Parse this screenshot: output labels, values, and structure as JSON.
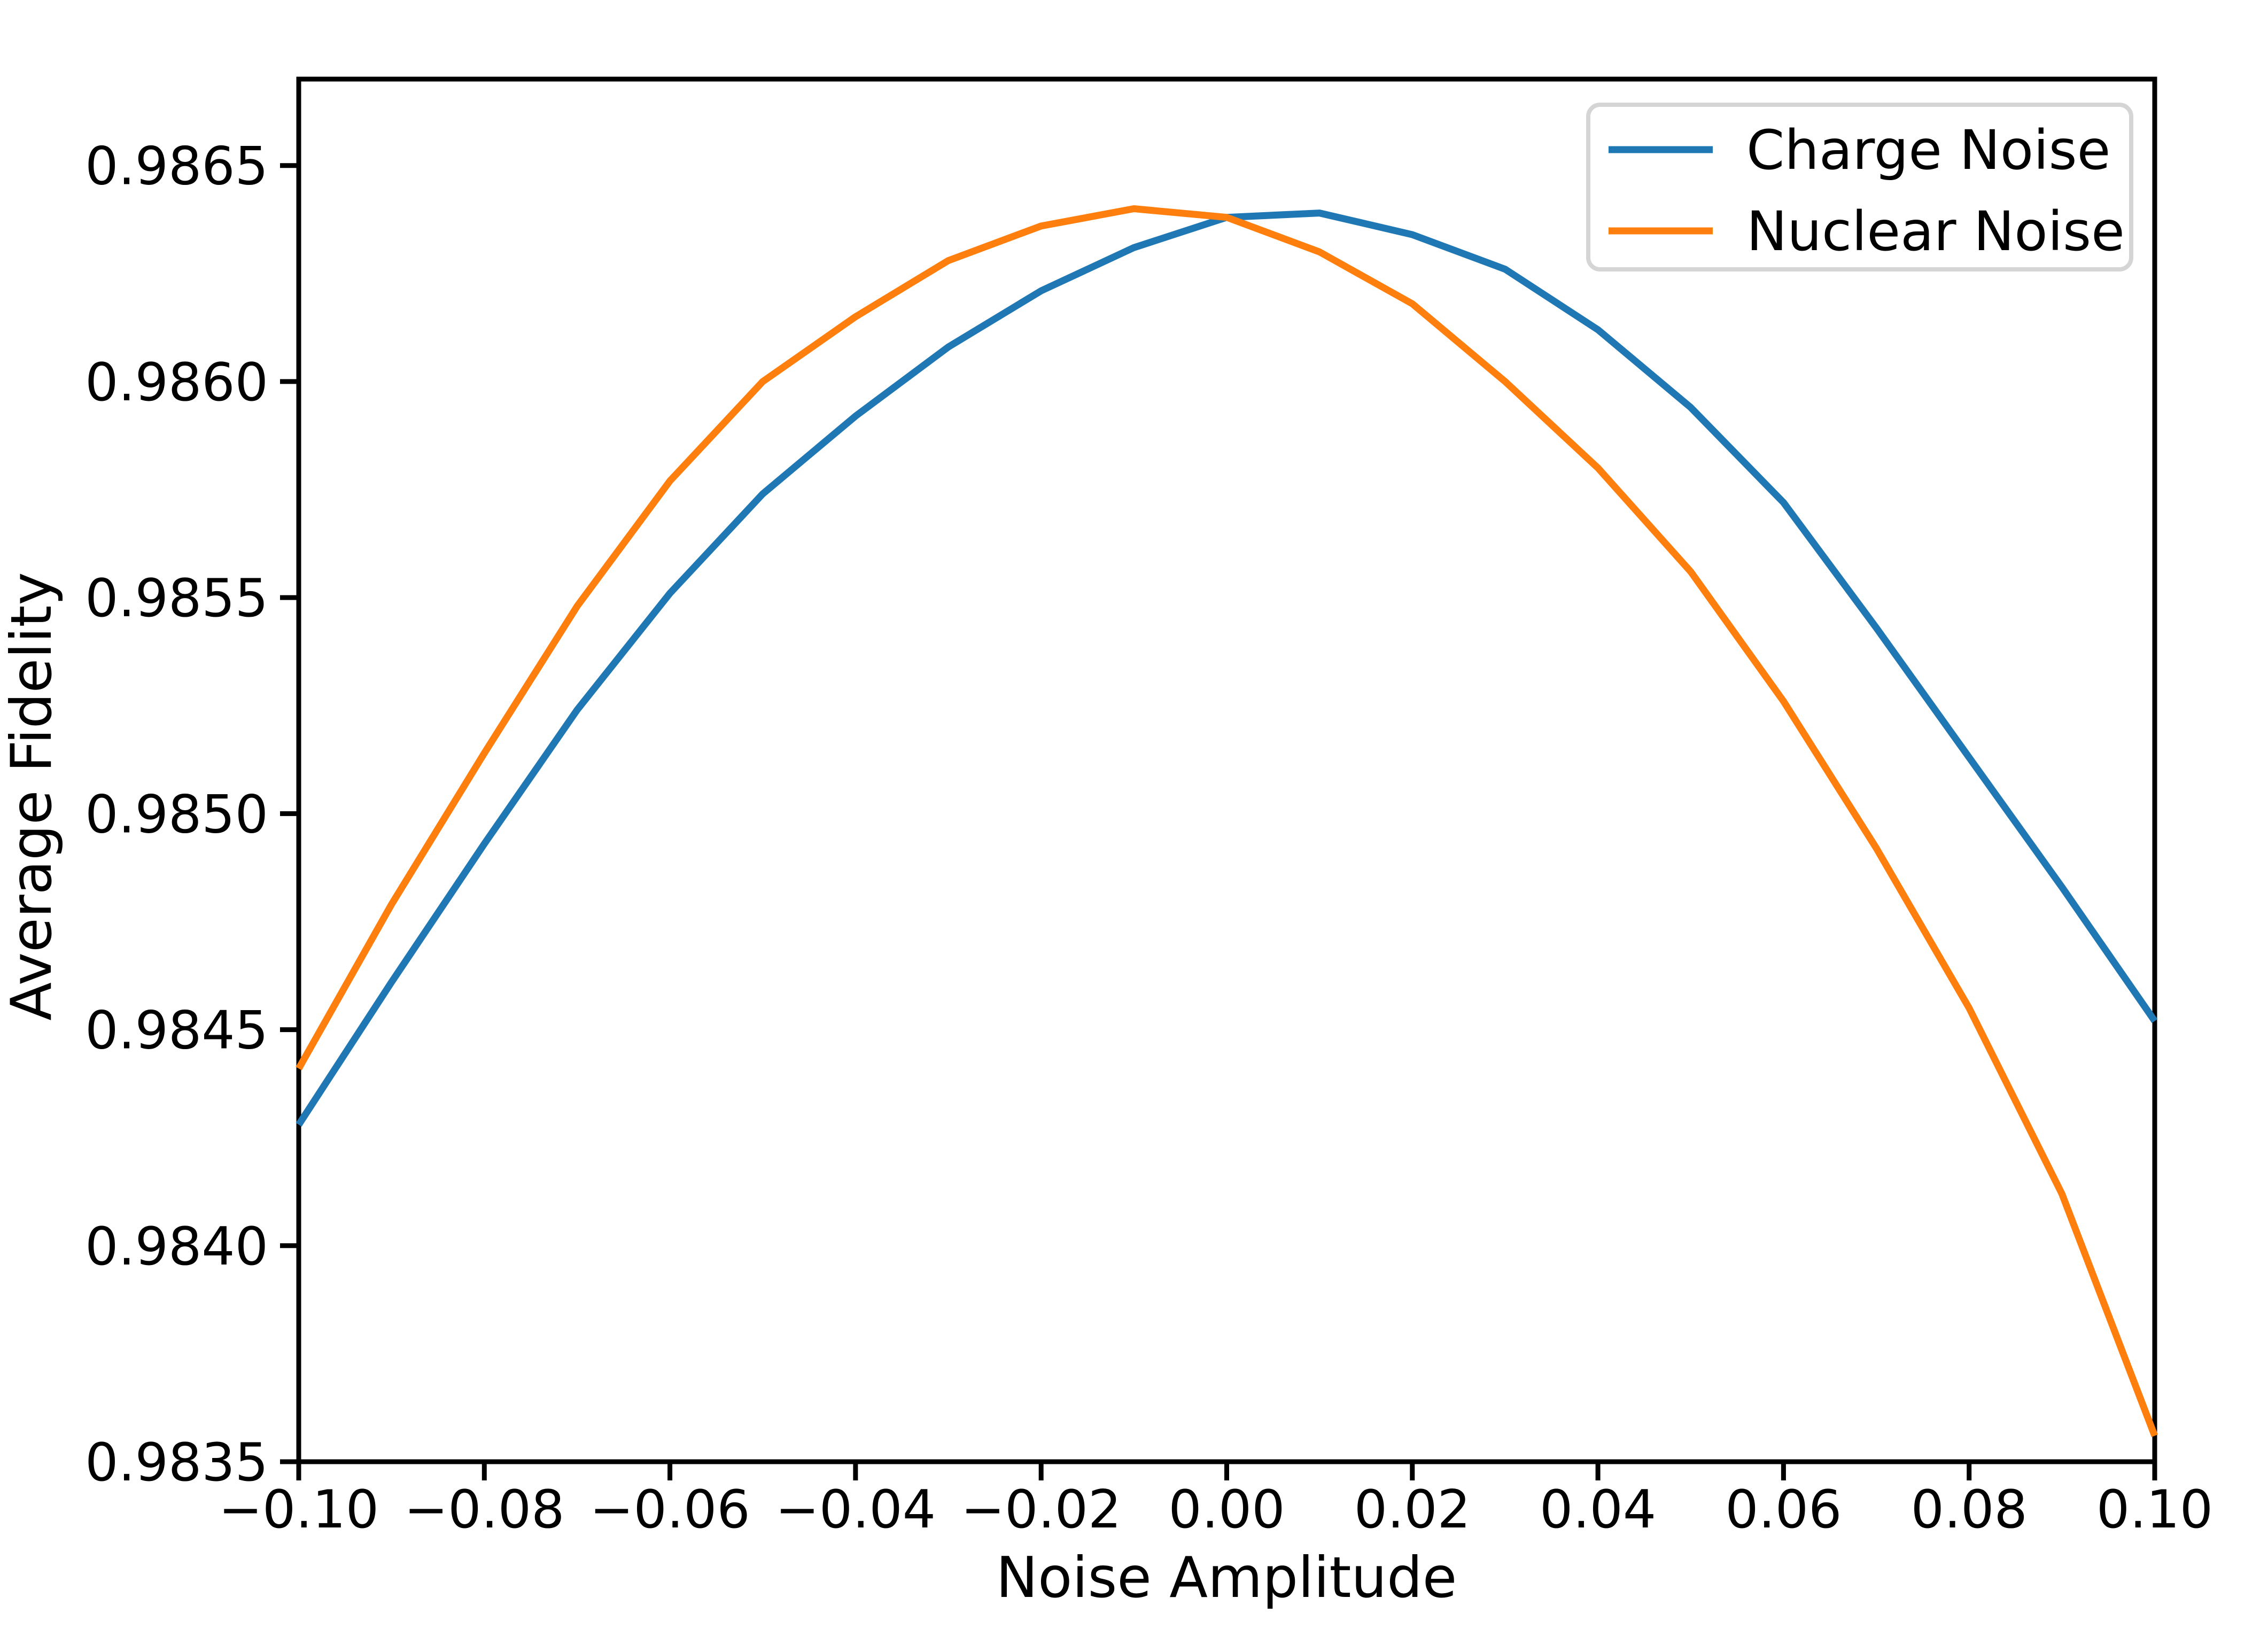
{
  "chart_data": {
    "type": "line",
    "title": "",
    "xlabel": "Noise Amplitude",
    "ylabel": "Average Fidelity",
    "xlim": [
      -0.1,
      0.1
    ],
    "ylim": [
      0.9835,
      0.9867
    ],
    "grid": false,
    "legend_position": "upper right",
    "x_ticks": [
      -0.1,
      -0.08,
      -0.06,
      -0.04,
      -0.02,
      0.0,
      0.02,
      0.04,
      0.06,
      0.08,
      0.1
    ],
    "x_tick_labels": [
      "−0.10",
      "−0.08",
      "−0.06",
      "−0.04",
      "−0.02",
      "0.00",
      "0.02",
      "0.04",
      "0.06",
      "0.08",
      "0.10"
    ],
    "y_ticks": [
      0.9835,
      0.984,
      0.9845,
      0.985,
      0.9855,
      0.986,
      0.9865
    ],
    "y_tick_labels": [
      "0.9835",
      "0.9840",
      "0.9845",
      "0.9850",
      "0.9855",
      "0.9860",
      "0.9865"
    ],
    "x": [
      -0.1,
      -0.09,
      -0.08,
      -0.07,
      -0.06,
      -0.05,
      -0.04,
      -0.03,
      -0.02,
      -0.01,
      0.0,
      0.01,
      0.02,
      0.03,
      0.04,
      0.05,
      0.06,
      0.07,
      0.08,
      0.09,
      0.1
    ],
    "series": [
      {
        "name": "Charge Noise",
        "color": "#1f77b4",
        "values": [
          0.98428,
          0.98461,
          0.98493,
          0.98524,
          0.98551,
          0.98574,
          0.98592,
          0.98608,
          0.98621,
          0.98631,
          0.98638,
          0.98639,
          0.98634,
          0.98626,
          0.98612,
          0.98594,
          0.98572,
          0.98543,
          0.98513,
          0.98483,
          0.98452
        ]
      },
      {
        "name": "Nuclear Noise",
        "color": "#ff7f0e",
        "values": [
          0.98441,
          0.98479,
          0.98514,
          0.98548,
          0.98577,
          0.986,
          0.98615,
          0.98628,
          0.98636,
          0.9864,
          0.98638,
          0.9863,
          0.98618,
          0.986,
          0.9858,
          0.98556,
          0.98526,
          0.98492,
          0.98455,
          0.98412,
          0.98356
        ]
      }
    ],
    "axis_color": "#000000",
    "legend_border_color": "#d5d5d5",
    "background_color": "#ffffff"
  }
}
